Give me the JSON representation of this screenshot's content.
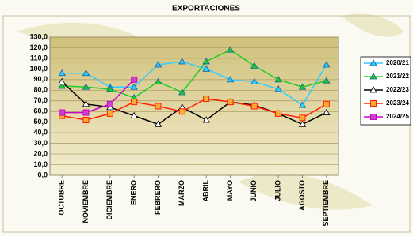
{
  "chart_data": {
    "type": "line",
    "title": "EXPORTACIONES",
    "categories": [
      "OCTUBRE",
      "NOVIEMBRE",
      "DICIEMBRE",
      "ENERO",
      "FEBRERO",
      "MARZO",
      "ABRIL",
      "MAYO",
      "JUNIO",
      "JULIO",
      "AGOSTO",
      "SEPTIEMBRE"
    ],
    "ylim": [
      0,
      130
    ],
    "yticks": [
      {
        "value": 0,
        "label": "0,0"
      },
      {
        "value": 10,
        "label": "10,0"
      },
      {
        "value": 20,
        "label": "20,0"
      },
      {
        "value": 30,
        "label": "30,0"
      },
      {
        "value": 40,
        "label": "40,0"
      },
      {
        "value": 50,
        "label": "50,0"
      },
      {
        "value": 60,
        "label": "60,0"
      },
      {
        "value": 70,
        "label": "70,0"
      },
      {
        "value": 80,
        "label": "80,0"
      },
      {
        "value": 90,
        "label": "90,0"
      },
      {
        "value": 100,
        "label": "100,0"
      },
      {
        "value": 110,
        "label": "110,0"
      },
      {
        "value": 120,
        "label": "120,0"
      },
      {
        "value": 130,
        "label": "130,0"
      }
    ],
    "grid": true,
    "legend": "right",
    "series": [
      {
        "name": "2020/21",
        "color": "#33ccff",
        "marker": "triangle",
        "marker_fill": "#33ccff",
        "values": [
          96,
          96,
          83,
          83,
          104,
          107,
          100,
          90,
          88,
          81,
          66,
          104
        ]
      },
      {
        "name": "2021/22",
        "color": "#22cc22",
        "marker": "triangle",
        "marker_fill": "#22cc22",
        "values": [
          84,
          83,
          81,
          73,
          88,
          78,
          107,
          118,
          103,
          90,
          83,
          89
        ]
      },
      {
        "name": "2022/23",
        "color": "#000000",
        "marker": "triangle",
        "marker_fill": "#ffffff",
        "values": [
          88,
          67,
          64,
          56,
          48,
          64,
          52,
          69,
          66,
          58,
          48,
          59
        ]
      },
      {
        "name": "2023/24",
        "color": "#ff2200",
        "marker": "square",
        "marker_fill": "#ffaa33",
        "values": [
          56,
          52,
          58,
          69,
          65,
          60,
          72,
          69,
          65,
          58,
          54,
          67
        ]
      },
      {
        "name": "2024/25",
        "color": "#cc00cc",
        "marker": "square",
        "marker_fill": "#cc44cc",
        "values": [
          59,
          59,
          67,
          90,
          null,
          null,
          null,
          null,
          null,
          null,
          null,
          null
        ]
      }
    ]
  }
}
